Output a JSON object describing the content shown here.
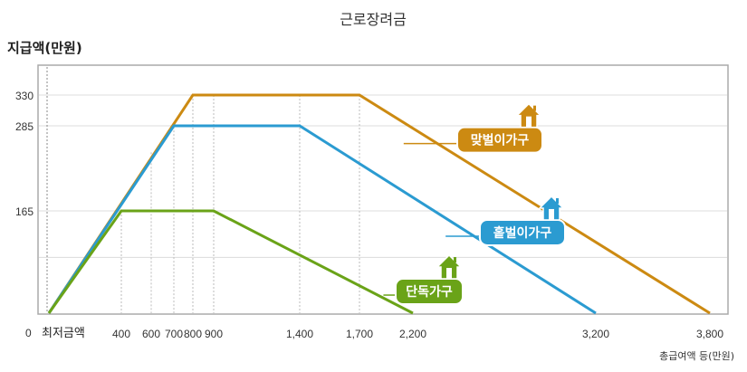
{
  "chart_data": {
    "type": "line",
    "title": "근로장려금",
    "ylabel": "지급액(만원)",
    "xlabel": "총급여액 등(만원)",
    "xlim": [
      0,
      3800
    ],
    "ylim": [
      0,
      360
    ],
    "y_ticks": [
      0,
      165,
      285,
      330
    ],
    "y_tick_labels": [
      "0",
      "165",
      "285",
      "330"
    ],
    "y_gridlines": [
      90,
      165,
      285,
      330
    ],
    "x_ticks": [
      400,
      600,
      700,
      800,
      900,
      1400,
      1700,
      2200,
      3200,
      3800
    ],
    "x_tick_labels": [
      "400",
      "600",
      "700",
      "800",
      "900",
      "1,400",
      "1,700",
      "2,200",
      "3,200",
      "3,800"
    ],
    "min_wage_label": "최저금액",
    "series": [
      {
        "name": "맞벌이가구",
        "color": "#cc8a12",
        "points": [
          [
            0,
            0
          ],
          [
            800,
            330
          ],
          [
            1700,
            330
          ],
          [
            3800,
            0
          ]
        ]
      },
      {
        "name": "홑벌이가구",
        "color": "#2b9bd1",
        "points": [
          [
            0,
            0
          ],
          [
            700,
            285
          ],
          [
            1400,
            285
          ],
          [
            3200,
            0
          ]
        ]
      },
      {
        "name": "단독가구",
        "color": "#6aa318",
        "points": [
          [
            0,
            0
          ],
          [
            400,
            165
          ],
          [
            900,
            165
          ],
          [
            2200,
            0
          ]
        ]
      }
    ]
  }
}
